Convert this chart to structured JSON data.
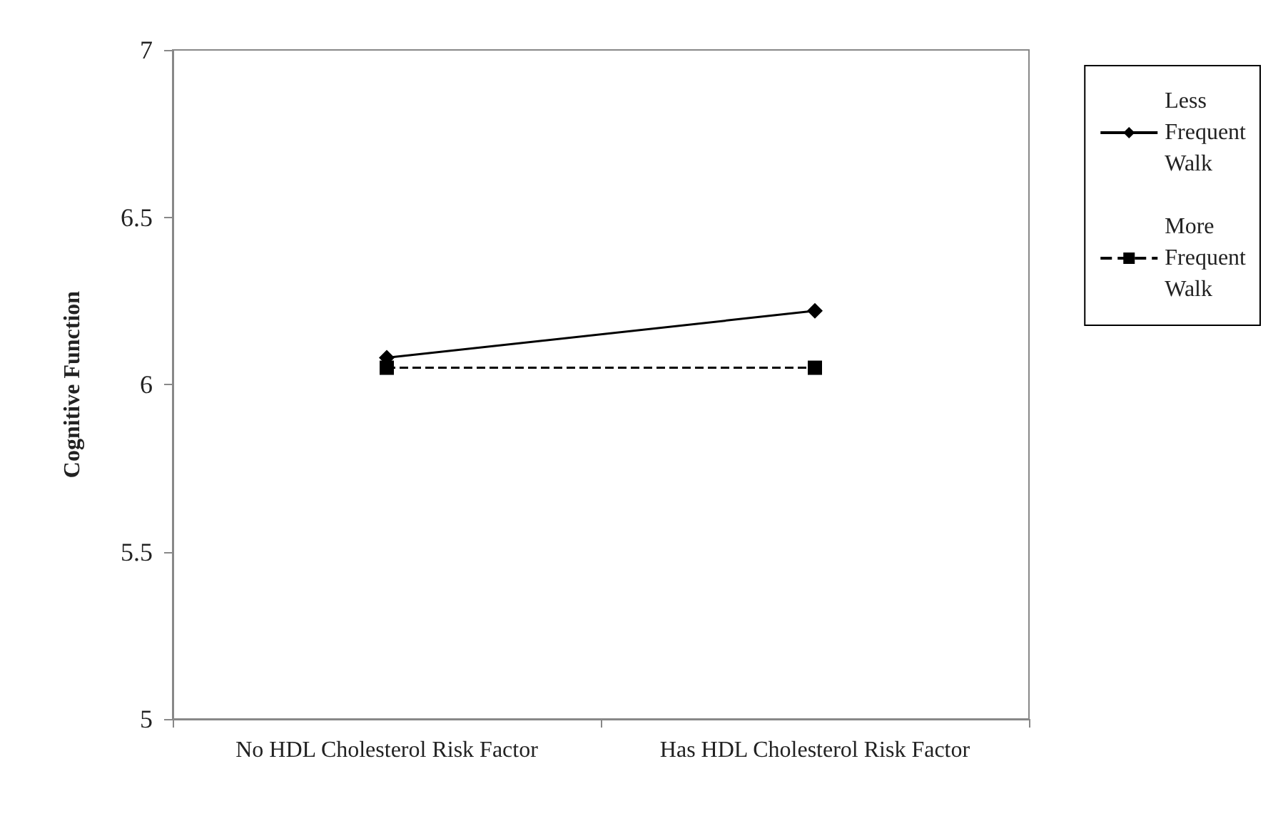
{
  "chart_data": {
    "type": "line",
    "ylabel": "Cognitive Function",
    "categories": [
      "No HDL Cholesterol Risk Factor",
      "Has HDL Cholesterol Risk Factor"
    ],
    "series": [
      {
        "name": "Less Frequent Walk",
        "color": "#000000",
        "values": [
          6.08,
          6.22
        ],
        "marker": "diamond",
        "line_style": "solid"
      },
      {
        "name": "More Frequent Walk",
        "color": "#000000",
        "values": [
          6.05,
          6.05
        ],
        "marker": "square",
        "line_style": "dashed"
      }
    ],
    "ylim": [
      5,
      7
    ],
    "yticks": [
      5,
      5.5,
      6,
      6.5,
      7
    ],
    "grid": false,
    "legend": "top right"
  }
}
